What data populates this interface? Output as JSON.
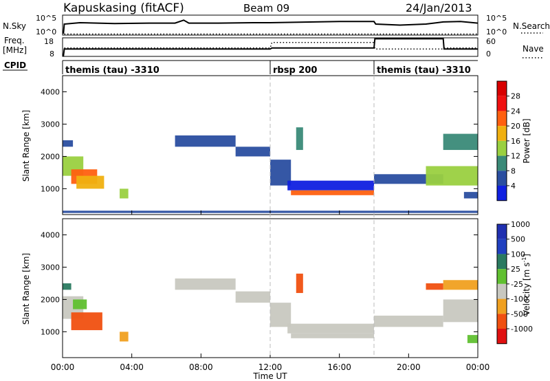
{
  "header": {
    "station": "Kapuskasing (fitACF)",
    "beam": "Beam 09",
    "date": "24/Jan/2013"
  },
  "colors": {
    "frame": "#000000",
    "dashed_divider": "#bbbbbb",
    "velocity_background_gray": "#c8c8c0"
  },
  "chart_data": [
    {
      "type": "line",
      "panel": "noise",
      "left_label": "N.Sky",
      "right_label": "N.Search",
      "left_ticks": [
        "10^5",
        "10^0"
      ],
      "right_ticks": [
        "10^5",
        "10^0"
      ],
      "series": [
        {
          "name": "N.Sky",
          "style": "solid",
          "x": [
            0.0,
            0.05,
            0.1,
            1.0,
            3.0,
            5.0,
            6.5,
            7.0,
            7.3,
            9.0,
            11.0,
            12.0,
            14.0,
            16.0,
            18.0,
            18.1,
            19.5,
            21.0,
            22.0,
            23.0,
            24.0
          ],
          "y": [
            0.1,
            0.1,
            0.55,
            0.62,
            0.58,
            0.6,
            0.6,
            0.75,
            0.6,
            0.6,
            0.62,
            0.62,
            0.65,
            0.68,
            0.68,
            0.55,
            0.5,
            0.55,
            0.66,
            0.68,
            0.6
          ]
        },
        {
          "name": "N.Search",
          "style": "dotted",
          "x": [
            0.1,
            24.0
          ],
          "y": [
            0.05,
            0.05
          ]
        }
      ]
    },
    {
      "type": "line",
      "panel": "frequency",
      "left_label": "Freq.",
      "left_unit": "[MHz]",
      "right_label": "Nave",
      "left_ticks": [
        "18",
        "8"
      ],
      "right_ticks": [
        "60",
        "0"
      ],
      "series": [
        {
          "name": "Freq.",
          "style": "solid",
          "x": [
            0.0,
            0.05,
            0.1,
            12.0,
            12.1,
            18.0,
            18.05,
            22.0,
            22.05,
            24.0
          ],
          "y": [
            0.05,
            0.05,
            0.4,
            0.4,
            0.45,
            0.45,
            0.95,
            0.95,
            0.4,
            0.4
          ]
        },
        {
          "name": "Nave",
          "style": "dotted",
          "x": [
            0.1,
            12.0,
            12.1,
            18.0,
            18.05,
            22.0,
            22.05,
            24.0
          ],
          "y": [
            0.45,
            0.45,
            0.75,
            0.75,
            0.4,
            0.4,
            0.45,
            0.45
          ]
        }
      ]
    },
    {
      "type": "table",
      "panel": "cpid",
      "label": "CPID",
      "segments": [
        {
          "start": 0,
          "end": 12,
          "name": "themis (tau) -3310"
        },
        {
          "start": 12,
          "end": 18,
          "name": "rbsp 200"
        },
        {
          "start": 18,
          "end": 24,
          "name": "themis (tau) -3310"
        }
      ]
    },
    {
      "type": "heatmap",
      "panel": "power",
      "ylabel": "Slant Range [km]",
      "yticks": [
        1000,
        2000,
        3000,
        4000
      ],
      "ylim": [
        200,
        4500
      ],
      "xlim": [
        0,
        24
      ],
      "colorbar": {
        "label": "Power [dB]",
        "ticks": [
          "4",
          "8",
          "12",
          "16",
          "20",
          "24",
          "28"
        ],
        "colors": [
          "#1020e0",
          "#2a4ea0",
          "#3a8a78",
          "#9ad040",
          "#f0b010",
          "#ff6010",
          "#f01010",
          "#d80000"
        ]
      },
      "regions": [
        {
          "x0": 0.0,
          "x1": 1.2,
          "y0": 1400,
          "y1": 2000,
          "level": 3
        },
        {
          "x0": 0.5,
          "x1": 2.0,
          "y0": 1150,
          "y1": 1600,
          "level": 5
        },
        {
          "x0": 0.8,
          "x1": 2.4,
          "y0": 1000,
          "y1": 1400,
          "level": 4
        },
        {
          "x0": 0.0,
          "x1": 0.6,
          "y0": 2300,
          "y1": 2500,
          "level": 1
        },
        {
          "x0": 3.3,
          "x1": 3.8,
          "y0": 700,
          "y1": 1000,
          "level": 3
        },
        {
          "x0": 6.5,
          "x1": 10.0,
          "y0": 2300,
          "y1": 2650,
          "level": 1
        },
        {
          "x0": 10.0,
          "x1": 12.0,
          "y0": 2000,
          "y1": 2300,
          "level": 1
        },
        {
          "x0": 12.0,
          "x1": 13.2,
          "y0": 1100,
          "y1": 1900,
          "level": 1
        },
        {
          "x0": 13.0,
          "x1": 18.0,
          "y0": 950,
          "y1": 1250,
          "level": 0
        },
        {
          "x0": 13.2,
          "x1": 18.0,
          "y0": 800,
          "y1": 950,
          "level": 5
        },
        {
          "x0": 13.5,
          "x1": 13.9,
          "y0": 2200,
          "y1": 2900,
          "level": 2
        },
        {
          "x0": 18.0,
          "x1": 22.0,
          "y0": 1150,
          "y1": 1450,
          "level": 1
        },
        {
          "x0": 21.0,
          "x1": 24.0,
          "y0": 1100,
          "y1": 1700,
          "level": 3
        },
        {
          "x0": 22.0,
          "x1": 24.0,
          "y0": 2200,
          "y1": 2700,
          "level": 2
        },
        {
          "x0": 23.2,
          "x1": 24.0,
          "y0": 700,
          "y1": 900,
          "level": 1
        },
        {
          "x0": 0.0,
          "x1": 24.0,
          "y0": 250,
          "y1": 320,
          "level": 1
        }
      ]
    },
    {
      "type": "heatmap",
      "panel": "velocity",
      "ylabel": "Slant Range [km]",
      "xlabel": "Time UT",
      "yticks": [
        1000,
        2000,
        3000,
        4000
      ],
      "ylim": [
        200,
        4500
      ],
      "xlim": [
        0,
        24
      ],
      "xticks": [
        "00:00",
        "04:00",
        "08:00",
        "12:00",
        "16:00",
        "20:00",
        "00:00"
      ],
      "colorbar": {
        "label": "Velocity [m s",
        "label_sup": "-1",
        "label_end": "]",
        "ticks": [
          "-1000",
          "-500",
          "-100",
          "-25",
          "25",
          "100",
          "500",
          "1000"
        ],
        "colors": [
          "#e01010",
          "#f05010",
          "#f0a020",
          "#c8c8c0",
          "#60c030",
          "#2a7a60",
          "#2040c0",
          "#2030b0"
        ]
      },
      "regions": [
        {
          "x0": 0.0,
          "x1": 1.2,
          "y0": 1400,
          "y1": 2100,
          "level": 3
        },
        {
          "x0": 0.5,
          "x1": 2.3,
          "y0": 1050,
          "y1": 1600,
          "level": 1
        },
        {
          "x0": 0.6,
          "x1": 1.4,
          "y0": 1700,
          "y1": 2000,
          "level": 4
        },
        {
          "x0": 0.0,
          "x1": 0.5,
          "y0": 2300,
          "y1": 2500,
          "level": 5
        },
        {
          "x0": 3.3,
          "x1": 3.8,
          "y0": 700,
          "y1": 1000,
          "level": 2
        },
        {
          "x0": 6.5,
          "x1": 10.0,
          "y0": 2300,
          "y1": 2650,
          "level": 3
        },
        {
          "x0": 10.0,
          "x1": 12.0,
          "y0": 1900,
          "y1": 2250,
          "level": 3
        },
        {
          "x0": 12.0,
          "x1": 13.2,
          "y0": 1150,
          "y1": 1900,
          "level": 3
        },
        {
          "x0": 13.0,
          "x1": 18.0,
          "y0": 950,
          "y1": 1250,
          "level": 3
        },
        {
          "x0": 13.2,
          "x1": 18.0,
          "y0": 800,
          "y1": 950,
          "level": 3
        },
        {
          "x0": 13.5,
          "x1": 13.9,
          "y0": 2200,
          "y1": 2800,
          "level": 1
        },
        {
          "x0": 18.0,
          "x1": 22.0,
          "y0": 1150,
          "y1": 1500,
          "level": 3
        },
        {
          "x0": 22.0,
          "x1": 24.0,
          "y0": 1300,
          "y1": 2000,
          "level": 3
        },
        {
          "x0": 22.0,
          "x1": 24.0,
          "y0": 2300,
          "y1": 2600,
          "level": 2
        },
        {
          "x0": 21.0,
          "x1": 22.0,
          "y0": 2300,
          "y1": 2500,
          "level": 1
        },
        {
          "x0": 23.4,
          "x1": 24.0,
          "y0": 650,
          "y1": 900,
          "level": 4
        }
      ]
    }
  ]
}
